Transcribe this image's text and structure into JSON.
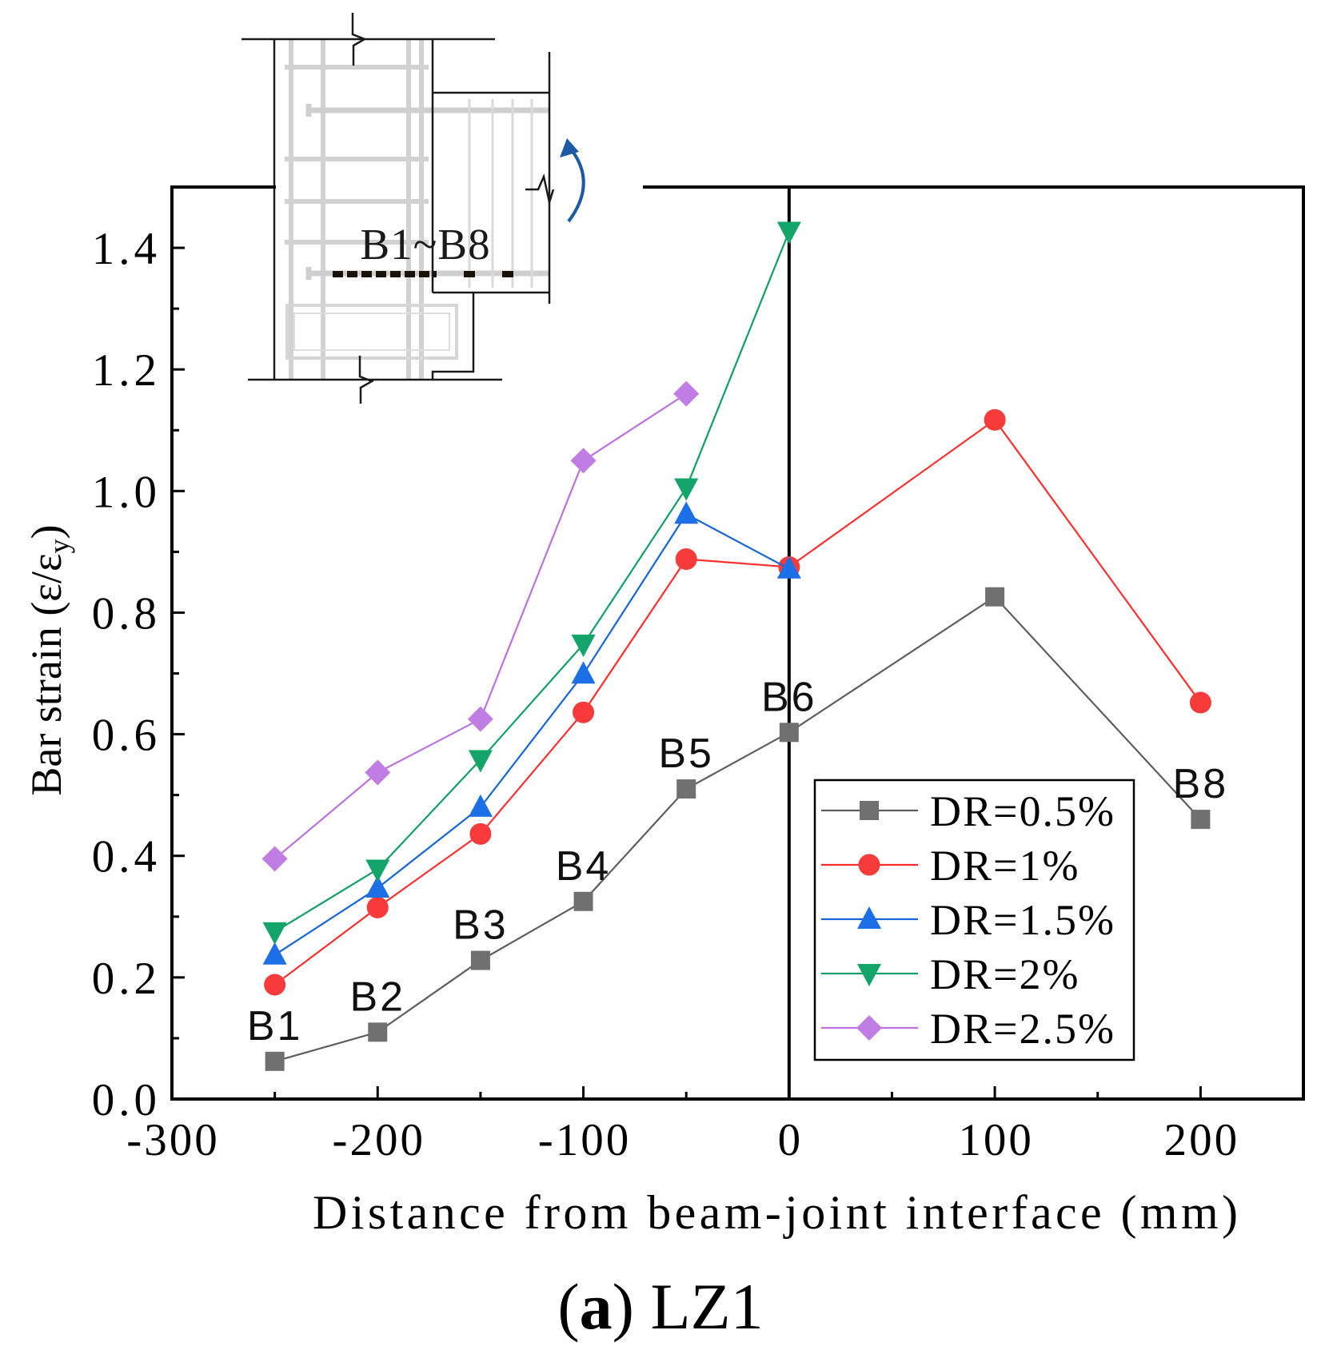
{
  "figure": {
    "caption": {
      "open": "(",
      "letter": "a",
      "rest": ") LZ1"
    }
  },
  "chart_data": {
    "type": "line",
    "title": "",
    "xlabel": "Distance from beam-joint interface (mm)",
    "ylabel": {
      "text": "Bar strain (ε/ε",
      "subscript": "y",
      "close": ")"
    },
    "xlim": [
      -300,
      250
    ],
    "ylim": [
      0,
      1.5
    ],
    "xticks": [
      -300,
      -200,
      -100,
      0,
      100,
      200
    ],
    "xticklabels": [
      "-300",
      "-200",
      "-100",
      "0",
      "100",
      "200"
    ],
    "yticks": [
      0,
      0.2,
      0.4,
      0.6,
      0.8,
      1.0,
      1.2,
      1.4
    ],
    "yticklabels": [
      "0.0",
      "0.2",
      "0.4",
      "0.6",
      "0.8",
      "1.0",
      "1.2",
      "1.4"
    ],
    "reference_line_x": 0,
    "grid": false,
    "legend": {
      "position": "lower-right"
    },
    "x": [
      -250,
      -200,
      -150,
      -100,
      -50,
      0,
      100,
      200
    ],
    "series": [
      {
        "name": "DR=0.5%",
        "marker": "square",
        "color": "#5e5e5e",
        "marker_color": "#707070",
        "values": [
          0.062,
          0.11,
          0.228,
          0.325,
          0.51,
          0.603,
          0.826,
          0.46
        ]
      },
      {
        "name": "DR=1%",
        "marker": "circle",
        "color": "#ff2e2e",
        "marker_color": "#f73b3b",
        "values": [
          0.188,
          0.315,
          0.436,
          0.636,
          0.888,
          0.875,
          1.117,
          0.652
        ]
      },
      {
        "name": "DR=1.5%",
        "marker": "triangle-up",
        "color": "#1666d6",
        "marker_color": "#1c6fe6",
        "values": [
          0.237,
          0.347,
          0.48,
          0.699,
          0.962,
          0.872,
          null,
          null
        ]
      },
      {
        "name": "DR=2%",
        "marker": "triangle-down",
        "color": "#10a065",
        "marker_color": "#12a469",
        "values": [
          0.275,
          0.378,
          0.558,
          0.748,
          1.005,
          1.427,
          null,
          null
        ]
      },
      {
        "name": "DR=2.5%",
        "marker": "diamond",
        "color": "#bb72df",
        "marker_color": "#c07de4",
        "values": [
          0.395,
          0.537,
          0.625,
          1.05,
          1.16,
          null,
          null,
          null
        ]
      }
    ],
    "annotations": [
      {
        "text": "B1",
        "x": -250
      },
      {
        "text": "B2",
        "x": -200
      },
      {
        "text": "B3",
        "x": -150
      },
      {
        "text": "B4",
        "x": -100
      },
      {
        "text": "B5",
        "x": -50
      },
      {
        "text": "B6",
        "x": 0
      },
      {
        "text": "B8",
        "x": 200
      }
    ],
    "inset": {
      "label": "B1~B8"
    }
  }
}
